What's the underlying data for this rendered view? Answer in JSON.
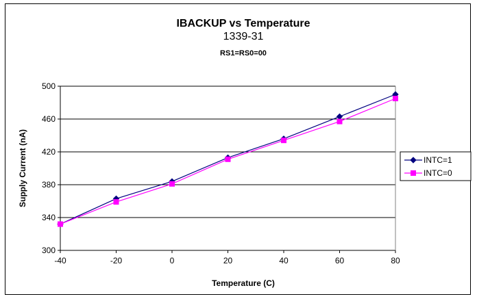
{
  "chart_data": {
    "type": "line",
    "title": "IBACKUP vs Temperature",
    "subtitle": "1339-31",
    "subtitle2": "RS1=RS0=00",
    "xlabel": "Temperature (C)",
    "ylabel": "Supply Current (nA)",
    "xlim": [
      -40,
      80
    ],
    "ylim": [
      300,
      500
    ],
    "xticks": [
      -40,
      -20,
      0,
      20,
      40,
      60,
      80
    ],
    "yticks": [
      300,
      340,
      380,
      420,
      460,
      500
    ],
    "grid": "horizontal",
    "legend_position": "right",
    "x": [
      -40,
      -20,
      0,
      20,
      40,
      60,
      80
    ],
    "series": [
      {
        "name": "INTC=1",
        "color": "#000080",
        "marker": "diamond",
        "values": [
          332,
          363,
          384,
          413,
          436,
          463,
          490
        ]
      },
      {
        "name": "INTC=0",
        "color": "#ff00ff",
        "marker": "square",
        "values": [
          332,
          359,
          381,
          411,
          434,
          457,
          485
        ]
      }
    ]
  }
}
